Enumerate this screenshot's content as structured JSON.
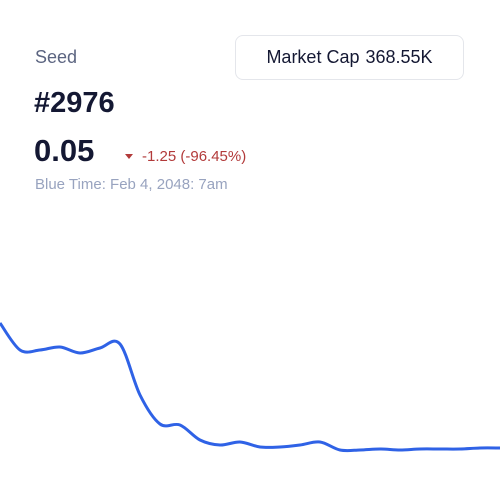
{
  "header": {
    "label": "Seed",
    "id": "#2976"
  },
  "price": {
    "value": "0.05",
    "change": "-1.25 (-96.45%)"
  },
  "timestamp": "Blue Time: Feb 4, 2048: 7am",
  "market_cap": {
    "label": "Market Cap",
    "value": "368.55K"
  },
  "chart_data": {
    "type": "line",
    "color": "#2f62e6",
    "values": [
      1.3,
      1.03,
      1.03,
      1.06,
      1.0,
      1.05,
      1.09,
      0.58,
      0.29,
      0.28,
      0.13,
      0.08,
      0.11,
      0.06,
      0.06,
      0.08,
      0.11,
      0.03,
      0.03,
      0.04,
      0.03,
      0.04,
      0.04,
      0.04,
      0.05,
      0.05
    ]
  }
}
